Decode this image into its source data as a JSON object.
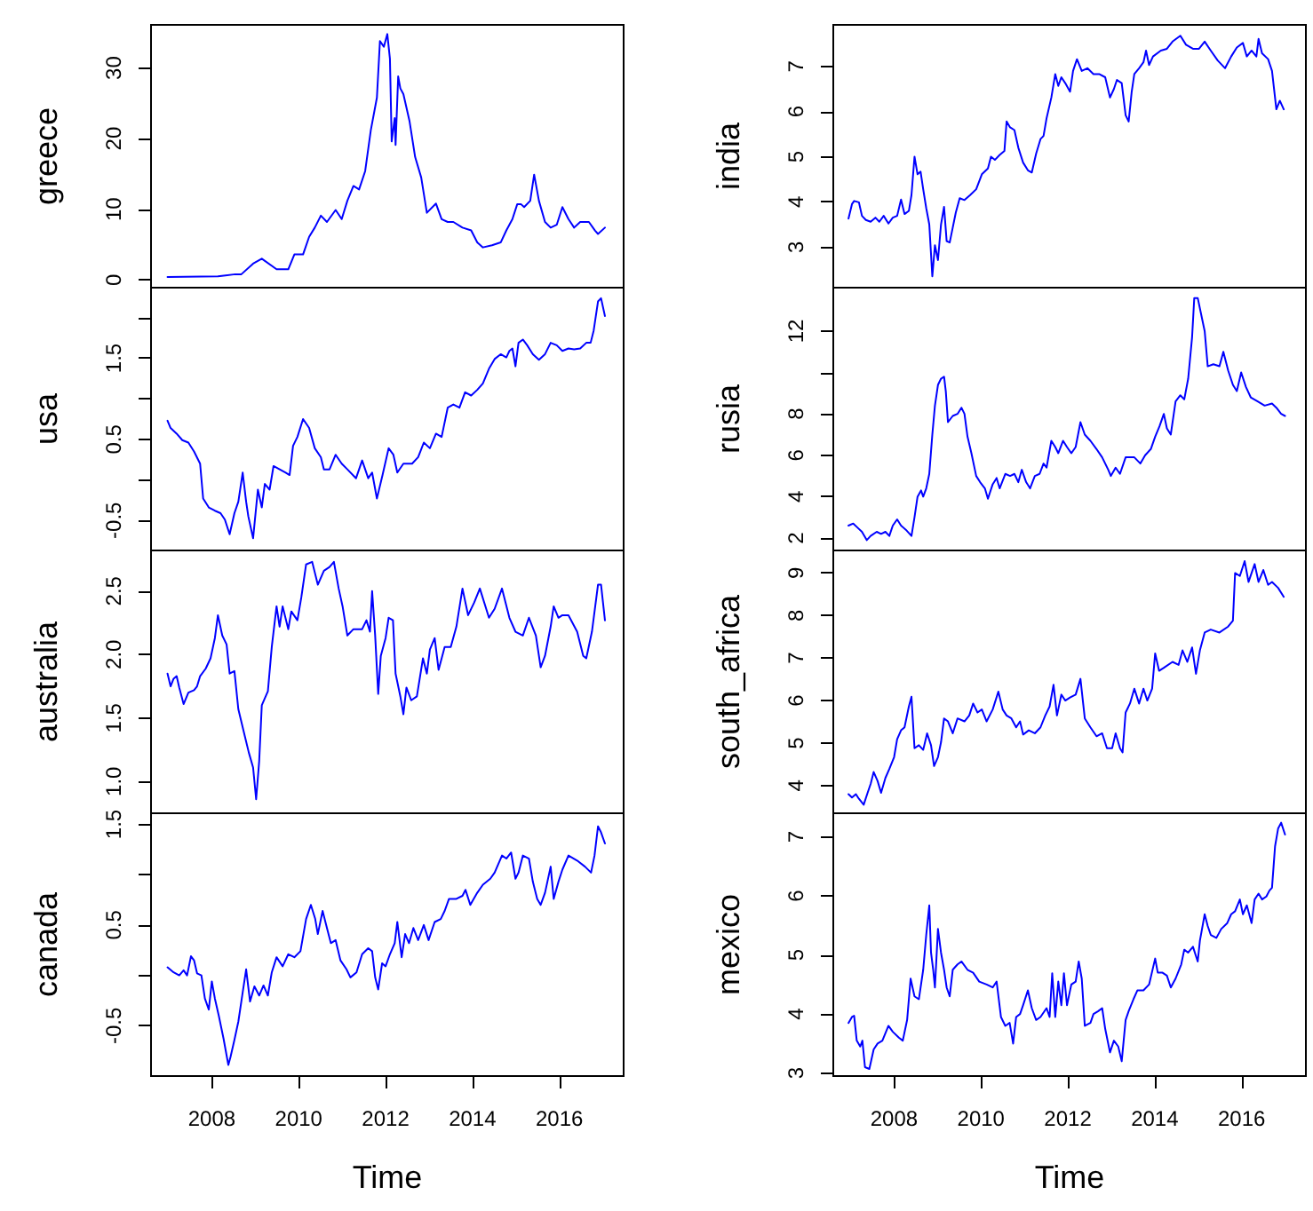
{
  "chart_data": [
    {
      "type": "line",
      "ylabel": "greece",
      "tick_labels": "y",
      "xlim": [
        2006.6,
        2017.48
      ],
      "ylim": [
        -1.1,
        36.1
      ],
      "yticks": [
        0,
        10,
        20,
        30
      ],
      "color": "#0000ff",
      "x": [
        2006.98,
        2008.14,
        2008.54,
        2008.68,
        2008.95,
        2009.15,
        2009.49,
        2009.76,
        2009.9,
        2010.1,
        2010.24,
        2010.37,
        2010.51,
        2010.65,
        2010.85,
        2010.99,
        2011.12,
        2011.26,
        2011.39,
        2011.53,
        2011.66,
        2011.8,
        2011.87,
        2011.96,
        2012.04,
        2012.1,
        2012.14,
        2012.21,
        2012.23,
        2012.29,
        2012.34,
        2012.41,
        2012.55,
        2012.68,
        2012.82,
        2012.95,
        2013.16,
        2013.29,
        2013.43,
        2013.56,
        2013.77,
        2013.97,
        2014.11,
        2014.24,
        2014.45,
        2014.65,
        2014.78,
        2014.92,
        2015.03,
        2015.12,
        2015.19,
        2015.33,
        2015.42,
        2015.53,
        2015.67,
        2015.8,
        2015.94,
        2016.07,
        2016.21,
        2016.34,
        2016.48,
        2016.68,
        2016.82,
        2016.89,
        2017.05
      ],
      "values": [
        0.4,
        0.5,
        0.8,
        0.8,
        2.3,
        3.0,
        1.5,
        1.5,
        3.6,
        3.6,
        6.1,
        7.4,
        9.1,
        8.2,
        9.9,
        8.6,
        11.2,
        13.3,
        12.8,
        15.4,
        21.2,
        25.8,
        33.8,
        33.0,
        34.8,
        31.3,
        19.6,
        22.9,
        19.1,
        28.8,
        27.1,
        26.3,
        22.5,
        17.4,
        14.5,
        9.5,
        10.8,
        8.6,
        8.2,
        8.2,
        7.4,
        7.0,
        5.3,
        4.6,
        4.9,
        5.3,
        7.0,
        8.6,
        10.7,
        10.7,
        10.3,
        11.2,
        14.9,
        11.2,
        8.2,
        7.4,
        7.8,
        10.3,
        8.6,
        7.4,
        8.2,
        8.2,
        7.0,
        6.5,
        7.4
      ]
    },
    {
      "type": "line",
      "ylabel": "india",
      "tick_labels": "y",
      "xlim": [
        2006.6,
        2017.48
      ],
      "ylim": [
        2.1,
        7.92
      ],
      "yticks": [
        3,
        4,
        5,
        6,
        7
      ],
      "color": "#0000ff",
      "x": [
        2006.95,
        2007.03,
        2007.08,
        2007.19,
        2007.26,
        2007.35,
        2007.46,
        2007.57,
        2007.66,
        2007.76,
        2007.87,
        2007.97,
        2008.07,
        2008.16,
        2008.24,
        2008.34,
        2008.4,
        2008.47,
        2008.54,
        2008.61,
        2008.67,
        2008.74,
        2008.81,
        2008.88,
        2008.94,
        2009.01,
        2009.08,
        2009.15,
        2009.21,
        2009.28,
        2009.35,
        2009.42,
        2009.51,
        2009.62,
        2009.75,
        2009.89,
        2010.02,
        2010.16,
        2010.23,
        2010.32,
        2010.43,
        2010.54,
        2010.59,
        2010.67,
        2010.77,
        2010.86,
        2010.97,
        2011.08,
        2011.17,
        2011.27,
        2011.37,
        2011.44,
        2011.51,
        2011.62,
        2011.71,
        2011.78,
        2011.85,
        2011.94,
        2012.05,
        2012.12,
        2012.21,
        2012.32,
        2012.45,
        2012.59,
        2012.72,
        2012.86,
        2012.97,
        2013.06,
        2013.13,
        2013.24,
        2013.33,
        2013.4,
        2013.47,
        2013.53,
        2013.64,
        2013.74,
        2013.8,
        2013.87,
        2013.96,
        2014.14,
        2014.28,
        2014.41,
        2014.59,
        2014.72,
        2014.88,
        2015.02,
        2015.15,
        2015.29,
        2015.45,
        2015.62,
        2015.76,
        2015.89,
        2016.03,
        2016.12,
        2016.23,
        2016.34,
        2016.39,
        2016.47,
        2016.61,
        2016.7,
        2016.8,
        2016.88,
        2016.97
      ],
      "values": [
        3.63,
        3.95,
        4.02,
        3.99,
        3.69,
        3.6,
        3.56,
        3.65,
        3.56,
        3.69,
        3.52,
        3.65,
        3.69,
        4.05,
        3.73,
        3.8,
        4.15,
        5.0,
        4.61,
        4.67,
        4.28,
        3.86,
        3.5,
        2.35,
        3.04,
        2.71,
        3.5,
        3.89,
        3.13,
        3.1,
        3.43,
        3.76,
        4.08,
        4.04,
        4.15,
        4.28,
        4.61,
        4.74,
        5.0,
        4.93,
        5.04,
        5.13,
        5.78,
        5.65,
        5.59,
        5.2,
        4.87,
        4.7,
        4.65,
        5.07,
        5.39,
        5.46,
        5.85,
        6.31,
        6.83,
        6.57,
        6.76,
        6.63,
        6.44,
        6.9,
        7.16,
        6.9,
        6.96,
        6.83,
        6.83,
        6.76,
        6.31,
        6.5,
        6.7,
        6.63,
        5.92,
        5.78,
        6.44,
        6.83,
        6.96,
        7.09,
        7.35,
        7.03,
        7.22,
        7.35,
        7.39,
        7.55,
        7.68,
        7.48,
        7.39,
        7.39,
        7.55,
        7.35,
        7.13,
        6.96,
        7.22,
        7.42,
        7.52,
        7.22,
        7.35,
        7.22,
        7.61,
        7.29,
        7.16,
        6.9,
        6.05,
        6.24,
        6.05
      ]
    },
    {
      "type": "line",
      "ylabel": "usa",
      "tick_labels": "y",
      "xlim": [
        2006.6,
        2017.48
      ],
      "ylim": [
        -0.87,
        2.37
      ],
      "yticks": [
        -0.5,
        {
          "value": 0,
          "label": null
        },
        0.5,
        {
          "value": 1,
          "label": null
        },
        1.5,
        {
          "value": 2,
          "label": null
        }
      ],
      "color": "#0000ff",
      "x": [
        2006.98,
        2007.05,
        2007.19,
        2007.32,
        2007.46,
        2007.59,
        2007.73,
        2007.8,
        2007.93,
        2008.07,
        2008.2,
        2008.3,
        2008.41,
        2008.52,
        2008.61,
        2008.71,
        2008.79,
        2008.84,
        2008.95,
        2009.06,
        2009.15,
        2009.22,
        2009.33,
        2009.42,
        2009.56,
        2009.7,
        2009.79,
        2009.87,
        2009.97,
        2010.1,
        2010.24,
        2010.37,
        2010.51,
        2010.58,
        2010.71,
        2010.85,
        2010.99,
        2011.12,
        2011.32,
        2011.46,
        2011.6,
        2011.69,
        2011.8,
        2011.93,
        2012.07,
        2012.18,
        2012.27,
        2012.41,
        2012.61,
        2012.75,
        2012.88,
        2013.02,
        2013.16,
        2013.29,
        2013.43,
        2013.56,
        2013.7,
        2013.83,
        2013.97,
        2014.11,
        2014.24,
        2014.38,
        2014.51,
        2014.65,
        2014.78,
        2014.85,
        2014.92,
        2014.99,
        2015.06,
        2015.16,
        2015.26,
        2015.39,
        2015.53,
        2015.67,
        2015.8,
        2015.94,
        2016.07,
        2016.21,
        2016.34,
        2016.48,
        2016.62,
        2016.72,
        2016.79,
        2016.89,
        2016.96,
        2017.05
      ],
      "values": [
        0.73,
        0.64,
        0.57,
        0.49,
        0.46,
        0.35,
        0.2,
        -0.23,
        -0.34,
        -0.38,
        -0.41,
        -0.49,
        -0.67,
        -0.41,
        -0.27,
        0.09,
        -0.27,
        -0.45,
        -0.72,
        -0.12,
        -0.34,
        -0.05,
        -0.12,
        0.17,
        0.13,
        0.09,
        0.06,
        0.42,
        0.53,
        0.75,
        0.64,
        0.39,
        0.28,
        0.13,
        0.13,
        0.31,
        0.2,
        0.13,
        0.02,
        0.24,
        0.02,
        0.09,
        -0.23,
        0.06,
        0.39,
        0.31,
        0.09,
        0.2,
        0.2,
        0.28,
        0.46,
        0.39,
        0.57,
        0.53,
        0.89,
        0.93,
        0.89,
        1.08,
        1.04,
        1.11,
        1.19,
        1.37,
        1.49,
        1.55,
        1.51,
        1.59,
        1.62,
        1.4,
        1.69,
        1.73,
        1.66,
        1.55,
        1.48,
        1.55,
        1.69,
        1.66,
        1.59,
        1.62,
        1.61,
        1.62,
        1.69,
        1.69,
        1.84,
        2.2,
        2.24,
        2.02
      ]
    },
    {
      "type": "line",
      "ylabel": "rusia",
      "tick_labels": "y",
      "xlim": [
        2006.6,
        2017.48
      ],
      "ylim": [
        1.4,
        14.1
      ],
      "yticks": [
        2,
        4,
        6,
        8,
        {
          "value": 10,
          "label": null
        },
        12
      ],
      "color": "#0000ff",
      "x": [
        2006.95,
        2007.06,
        2007.16,
        2007.26,
        2007.37,
        2007.46,
        2007.6,
        2007.7,
        2007.8,
        2007.89,
        2007.97,
        2008.07,
        2008.16,
        2008.27,
        2008.4,
        2008.47,
        2008.54,
        2008.62,
        2008.67,
        2008.74,
        2008.81,
        2008.88,
        2008.94,
        2009.01,
        2009.08,
        2009.15,
        2009.19,
        2009.24,
        2009.35,
        2009.46,
        2009.55,
        2009.62,
        2009.69,
        2009.78,
        2009.89,
        2009.98,
        2010.09,
        2010.16,
        2010.27,
        2010.36,
        2010.43,
        2010.56,
        2010.67,
        2010.77,
        2010.86,
        2010.94,
        2011.04,
        2011.13,
        2011.24,
        2011.35,
        2011.44,
        2011.51,
        2011.62,
        2011.71,
        2011.78,
        2011.89,
        2011.98,
        2012.08,
        2012.18,
        2012.29,
        2012.39,
        2012.52,
        2012.66,
        2012.79,
        2012.93,
        2012.99,
        2013.1,
        2013.2,
        2013.33,
        2013.53,
        2013.67,
        2013.78,
        2013.91,
        2014.01,
        2014.11,
        2014.21,
        2014.28,
        2014.37,
        2014.48,
        2014.59,
        2014.68,
        2014.77,
        2014.86,
        2014.91,
        2014.99,
        2015.06,
        2015.15,
        2015.22,
        2015.35,
        2015.49,
        2015.58,
        2015.69,
        2015.8,
        2015.89,
        2015.99,
        2016.1,
        2016.21,
        2016.37,
        2016.53,
        2016.7,
        2016.8,
        2016.91,
        2017.0
      ],
      "values": [
        2.6,
        2.7,
        2.5,
        2.3,
        1.9,
        2.1,
        2.3,
        2.2,
        2.3,
        2.1,
        2.6,
        2.9,
        2.6,
        2.4,
        2.1,
        3.0,
        4.0,
        4.3,
        4.0,
        4.4,
        5.1,
        7.0,
        8.4,
        9.4,
        9.7,
        9.8,
        9.1,
        7.6,
        7.9,
        8.0,
        8.3,
        8.0,
        6.9,
        6.1,
        5.0,
        4.7,
        4.4,
        3.9,
        4.6,
        4.9,
        4.4,
        5.1,
        5.0,
        5.1,
        4.7,
        5.3,
        4.7,
        4.4,
        5.0,
        5.1,
        5.6,
        5.4,
        6.7,
        6.4,
        6.1,
        6.7,
        6.4,
        6.1,
        6.4,
        7.6,
        7.0,
        6.7,
        6.3,
        5.9,
        5.3,
        5.0,
        5.4,
        5.1,
        5.9,
        5.9,
        5.6,
        6.0,
        6.3,
        6.9,
        7.4,
        8.0,
        7.3,
        7.0,
        8.6,
        8.9,
        8.7,
        9.7,
        11.7,
        13.6,
        13.6,
        12.9,
        12.0,
        10.3,
        10.4,
        10.3,
        11.0,
        10.1,
        9.4,
        9.1,
        10.0,
        9.3,
        8.8,
        8.6,
        8.4,
        8.5,
        8.3,
        8.0,
        7.9
      ]
    },
    {
      "type": "line",
      "ylabel": "australia",
      "tick_labels": "y",
      "xlim": [
        2006.6,
        2017.48
      ],
      "ylim": [
        0.75,
        2.82
      ],
      "yticks": [
        {
          "value": 1,
          "label": "1.0"
        },
        1.5,
        {
          "value": 2,
          "label": "2.0"
        },
        2.5
      ],
      "color": "#0000ff",
      "x": [
        2006.98,
        2007.05,
        2007.12,
        2007.19,
        2007.25,
        2007.35,
        2007.46,
        2007.59,
        2007.66,
        2007.73,
        2007.86,
        2007.97,
        2008.07,
        2008.14,
        2008.24,
        2008.34,
        2008.41,
        2008.52,
        2008.61,
        2008.75,
        2008.85,
        2008.95,
        2009.02,
        2009.09,
        2009.15,
        2009.29,
        2009.38,
        2009.49,
        2009.56,
        2009.63,
        2009.76,
        2009.83,
        2009.97,
        2010.06,
        2010.17,
        2010.31,
        2010.44,
        2010.58,
        2010.71,
        2010.81,
        2010.92,
        2011.01,
        2011.12,
        2011.26,
        2011.46,
        2011.56,
        2011.64,
        2011.69,
        2011.76,
        2011.83,
        2011.89,
        2012.0,
        2012.07,
        2012.17,
        2012.23,
        2012.34,
        2012.41,
        2012.48,
        2012.59,
        2012.72,
        2012.86,
        2012.95,
        2013.02,
        2013.13,
        2013.22,
        2013.36,
        2013.5,
        2013.63,
        2013.77,
        2013.9,
        2014.04,
        2014.17,
        2014.38,
        2014.51,
        2014.68,
        2014.85,
        2014.99,
        2015.16,
        2015.3,
        2015.46,
        2015.57,
        2015.67,
        2015.8,
        2015.87,
        2015.98,
        2016.07,
        2016.21,
        2016.41,
        2016.55,
        2016.62,
        2016.75,
        2016.89,
        2016.96,
        2017.05
      ],
      "values": [
        1.85,
        1.75,
        1.81,
        1.83,
        1.74,
        1.61,
        1.7,
        1.72,
        1.75,
        1.83,
        1.89,
        1.97,
        2.13,
        2.31,
        2.15,
        2.08,
        1.85,
        1.87,
        1.57,
        1.37,
        1.23,
        1.11,
        0.86,
        1.16,
        1.6,
        1.71,
        2.06,
        2.38,
        2.22,
        2.38,
        2.2,
        2.34,
        2.27,
        2.45,
        2.71,
        2.73,
        2.55,
        2.66,
        2.69,
        2.73,
        2.52,
        2.38,
        2.15,
        2.2,
        2.2,
        2.27,
        2.18,
        2.5,
        2.15,
        1.69,
        1.99,
        2.13,
        2.29,
        2.27,
        1.85,
        1.67,
        1.53,
        1.74,
        1.64,
        1.67,
        1.97,
        1.85,
        2.04,
        2.13,
        1.88,
        2.06,
        2.06,
        2.22,
        2.52,
        2.31,
        2.41,
        2.52,
        2.29,
        2.36,
        2.52,
        2.29,
        2.18,
        2.15,
        2.29,
        2.15,
        1.9,
        1.99,
        2.22,
        2.38,
        2.29,
        2.31,
        2.31,
        2.18,
        1.99,
        1.97,
        2.18,
        2.55,
        2.55,
        2.27
      ]
    },
    {
      "type": "line",
      "ylabel": "south_africa",
      "tick_labels": "y",
      "xlim": [
        2006.6,
        2017.48
      ],
      "ylim": [
        3.35,
        9.53
      ],
      "yticks": [
        4,
        5,
        6,
        7,
        8,
        9
      ],
      "color": "#0000ff",
      "x": [
        2006.95,
        2007.03,
        2007.12,
        2007.19,
        2007.3,
        2007.39,
        2007.46,
        2007.53,
        2007.62,
        2007.7,
        2007.8,
        2007.89,
        2008.0,
        2008.07,
        2008.16,
        2008.24,
        2008.34,
        2008.4,
        2008.47,
        2008.57,
        2008.67,
        2008.76,
        2008.85,
        2008.92,
        2009.01,
        2009.08,
        2009.15,
        2009.24,
        2009.35,
        2009.46,
        2009.62,
        2009.73,
        2009.82,
        2009.92,
        2010.02,
        2010.13,
        2010.27,
        2010.4,
        2010.5,
        2010.59,
        2010.7,
        2010.81,
        2010.9,
        2010.97,
        2011.1,
        2011.24,
        2011.37,
        2011.48,
        2011.58,
        2011.67,
        2011.75,
        2011.85,
        2011.94,
        2012.05,
        2012.18,
        2012.29,
        2012.39,
        2012.52,
        2012.66,
        2012.79,
        2012.9,
        2013.02,
        2013.1,
        2013.2,
        2013.26,
        2013.33,
        2013.43,
        2013.53,
        2013.64,
        2013.74,
        2013.83,
        2013.94,
        2014.01,
        2014.1,
        2014.21,
        2014.41,
        2014.55,
        2014.64,
        2014.75,
        2014.86,
        2014.95,
        2015.04,
        2015.15,
        2015.29,
        2015.49,
        2015.69,
        2015.8,
        2015.85,
        2015.96,
        2016.07,
        2016.16,
        2016.3,
        2016.39,
        2016.5,
        2016.61,
        2016.7,
        2016.84,
        2016.97
      ],
      "values": [
        3.8,
        3.72,
        3.8,
        3.69,
        3.55,
        3.83,
        4.04,
        4.32,
        4.11,
        3.83,
        4.18,
        4.39,
        4.67,
        5.09,
        5.3,
        5.37,
        5.86,
        6.09,
        4.88,
        4.95,
        4.84,
        5.23,
        4.95,
        4.46,
        4.67,
        5.02,
        5.58,
        5.51,
        5.23,
        5.58,
        5.51,
        5.65,
        5.93,
        5.72,
        5.79,
        5.51,
        5.79,
        6.21,
        5.79,
        5.65,
        5.58,
        5.37,
        5.51,
        5.2,
        5.3,
        5.23,
        5.37,
        5.65,
        5.86,
        6.37,
        5.65,
        6.14,
        6.0,
        6.07,
        6.14,
        6.51,
        5.58,
        5.37,
        5.16,
        5.23,
        4.88,
        4.88,
        5.23,
        4.88,
        4.78,
        5.72,
        5.93,
        6.28,
        5.93,
        6.28,
        6.0,
        6.28,
        7.11,
        6.7,
        6.77,
        6.91,
        6.84,
        7.18,
        6.91,
        7.25,
        6.63,
        7.18,
        7.6,
        7.67,
        7.6,
        7.74,
        7.88,
        9.0,
        8.93,
        9.28,
        8.79,
        9.21,
        8.79,
        9.07,
        8.72,
        8.79,
        8.65,
        8.44
      ]
    },
    {
      "type": "line",
      "ylabel": "canada",
      "xlabel": "Time",
      "xlim": [
        2006.6,
        2017.48
      ],
      "xticks": [
        2008,
        2010,
        2012,
        2014,
        2016
      ],
      "ylim": [
        -1.0,
        1.61
      ],
      "yticks": [
        -0.5,
        {
          "value": 0,
          "label": null
        },
        0.5,
        {
          "value": 1,
          "label": null
        },
        1.5
      ],
      "color": "#0000ff",
      "x": [
        2006.98,
        2007.12,
        2007.25,
        2007.35,
        2007.43,
        2007.52,
        2007.59,
        2007.66,
        2007.76,
        2007.84,
        2007.93,
        2008.0,
        2008.07,
        2008.16,
        2008.27,
        2008.38,
        2008.43,
        2008.52,
        2008.61,
        2008.71,
        2008.79,
        2008.88,
        2008.98,
        2009.09,
        2009.19,
        2009.29,
        2009.38,
        2009.49,
        2009.63,
        2009.76,
        2009.9,
        2010.04,
        2010.17,
        2010.28,
        2010.38,
        2010.44,
        2010.55,
        2010.65,
        2010.74,
        2010.85,
        2010.96,
        2011.1,
        2011.19,
        2011.33,
        2011.46,
        2011.6,
        2011.69,
        2011.76,
        2011.83,
        2011.92,
        2012.0,
        2012.1,
        2012.21,
        2012.27,
        2012.37,
        2012.45,
        2012.54,
        2012.64,
        2012.75,
        2012.88,
        2012.99,
        2013.13,
        2013.27,
        2013.36,
        2013.46,
        2013.63,
        2013.77,
        2013.84,
        2013.95,
        2014.11,
        2014.24,
        2014.41,
        2014.51,
        2014.68,
        2014.78,
        2014.89,
        2014.99,
        2015.06,
        2015.16,
        2015.3,
        2015.39,
        2015.49,
        2015.57,
        2015.67,
        2015.8,
        2015.87,
        2015.98,
        2016.07,
        2016.21,
        2016.41,
        2016.59,
        2016.73,
        2016.81,
        2016.89,
        2016.96,
        2017.05
      ],
      "values": [
        0.08,
        0.03,
        0.0,
        0.05,
        0.0,
        0.19,
        0.15,
        0.02,
        0.0,
        -0.23,
        -0.34,
        -0.06,
        -0.23,
        -0.4,
        -0.63,
        -0.89,
        -0.81,
        -0.64,
        -0.46,
        -0.17,
        0.06,
        -0.26,
        -0.11,
        -0.2,
        -0.1,
        -0.2,
        0.03,
        0.18,
        0.09,
        0.21,
        0.18,
        0.24,
        0.56,
        0.7,
        0.56,
        0.41,
        0.64,
        0.47,
        0.32,
        0.35,
        0.15,
        0.06,
        -0.02,
        0.03,
        0.21,
        0.27,
        0.24,
        -0.02,
        -0.14,
        0.12,
        0.09,
        0.21,
        0.32,
        0.53,
        0.18,
        0.41,
        0.32,
        0.47,
        0.35,
        0.5,
        0.35,
        0.53,
        0.56,
        0.64,
        0.76,
        0.76,
        0.79,
        0.85,
        0.7,
        0.82,
        0.9,
        0.96,
        1.02,
        1.19,
        1.16,
        1.22,
        0.96,
        1.02,
        1.19,
        1.16,
        0.93,
        0.76,
        0.7,
        0.82,
        1.08,
        0.76,
        0.93,
        1.05,
        1.19,
        1.14,
        1.08,
        1.02,
        1.19,
        1.48,
        1.42,
        1.31
      ]
    },
    {
      "type": "line",
      "ylabel": "mexico",
      "xlabel": "Time",
      "xlim": [
        2006.6,
        2017.48
      ],
      "xticks": [
        2008,
        2010,
        2012,
        2014,
        2016
      ],
      "ylim": [
        2.95,
        7.4
      ],
      "yticks": [
        3,
        4,
        5,
        6,
        7
      ],
      "color": "#0000ff",
      "x": [
        2006.95,
        2007.03,
        2007.08,
        2007.14,
        2007.22,
        2007.27,
        2007.33,
        2007.43,
        2007.53,
        2007.62,
        2007.73,
        2007.87,
        2007.97,
        2008.11,
        2008.2,
        2008.3,
        2008.38,
        2008.47,
        2008.57,
        2008.67,
        2008.74,
        2008.81,
        2008.85,
        2008.9,
        2008.94,
        2009.01,
        2009.08,
        2009.15,
        2009.21,
        2009.28,
        2009.35,
        2009.46,
        2009.55,
        2009.69,
        2009.82,
        2009.96,
        2010.13,
        2010.27,
        2010.36,
        2010.46,
        2010.56,
        2010.66,
        2010.74,
        2010.81,
        2010.9,
        2010.97,
        2011.08,
        2011.17,
        2011.27,
        2011.37,
        2011.51,
        2011.58,
        2011.64,
        2011.71,
        2011.78,
        2011.85,
        2011.91,
        2011.98,
        2012.08,
        2012.18,
        2012.25,
        2012.32,
        2012.39,
        2012.52,
        2012.59,
        2012.7,
        2012.79,
        2012.86,
        2012.97,
        2013.06,
        2013.16,
        2013.24,
        2013.33,
        2013.4,
        2013.51,
        2013.6,
        2013.74,
        2013.87,
        2014.01,
        2014.07,
        2014.18,
        2014.28,
        2014.37,
        2014.48,
        2014.61,
        2014.68,
        2014.77,
        2014.88,
        2014.99,
        2015.04,
        2015.15,
        2015.22,
        2015.29,
        2015.42,
        2015.53,
        2015.67,
        2015.76,
        2015.85,
        2015.96,
        2016.03,
        2016.12,
        2016.23,
        2016.3,
        2016.39,
        2016.47,
        2016.57,
        2016.64,
        2016.7,
        2016.77,
        2016.84,
        2016.91,
        2017.0
      ],
      "values": [
        3.85,
        3.95,
        3.97,
        3.55,
        3.45,
        3.55,
        3.1,
        3.07,
        3.4,
        3.5,
        3.55,
        3.8,
        3.7,
        3.6,
        3.55,
        3.9,
        4.6,
        4.3,
        4.25,
        4.75,
        5.34,
        5.84,
        5.04,
        4.75,
        4.45,
        5.44,
        5.04,
        4.75,
        4.45,
        4.3,
        4.75,
        4.84,
        4.89,
        4.75,
        4.7,
        4.55,
        4.5,
        4.45,
        4.55,
        3.95,
        3.8,
        3.85,
        3.5,
        3.95,
        4.0,
        4.15,
        4.4,
        4.1,
        3.9,
        3.95,
        4.1,
        3.95,
        4.69,
        3.95,
        4.55,
        4.15,
        4.69,
        4.15,
        4.5,
        4.55,
        4.89,
        4.6,
        3.8,
        3.85,
        4.0,
        4.05,
        4.1,
        3.75,
        3.35,
        3.55,
        3.45,
        3.2,
        3.9,
        4.05,
        4.25,
        4.4,
        4.4,
        4.5,
        4.94,
        4.7,
        4.7,
        4.65,
        4.45,
        4.6,
        4.84,
        5.09,
        5.04,
        5.14,
        4.89,
        5.24,
        5.69,
        5.49,
        5.34,
        5.29,
        5.44,
        5.54,
        5.69,
        5.74,
        5.94,
        5.69,
        5.84,
        5.54,
        5.94,
        6.04,
        5.94,
        5.99,
        6.09,
        6.14,
        6.84,
        7.14,
        7.24,
        7.04
      ]
    }
  ]
}
